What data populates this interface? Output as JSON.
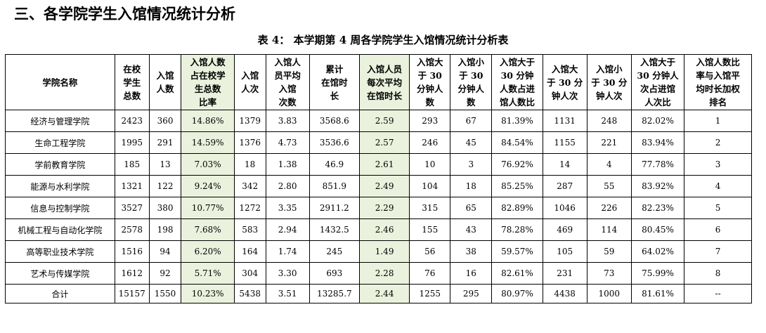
{
  "section_title": "三、各学院学生入馆情况统计分析",
  "table_title": "表 4： 本学期第 4 周各学院学生入馆情况统计分析表",
  "colors": {
    "highlight": "#eaf1dd",
    "border": "#000000"
  },
  "table": {
    "headers": [
      "学院名称",
      "在校\n学生\n总数",
      "入馆\n人数",
      "入馆人数\n占在校学\n生总数\n比率",
      "入馆\n人次",
      "入馆人\n员平均\n入馆\n次数",
      "累计\n在馆时\n长",
      "入馆人员\n每次平均\n在馆时长",
      "入馆大\n于 30\n分钟人\n数",
      "入馆小\n于 30\n分钟人\n数",
      "入馆大于\n30 分钟\n人数占进\n馆人数比",
      "入馆大\n于 30 分\n钟人次",
      "入馆小\n于 30 分\n钟人次",
      "入馆大于\n30 分钟人\n次占进馆\n人次比",
      "入馆人数比\n率与入馆平\n均时长加权\n排名"
    ],
    "rows": [
      [
        "经济与管理学院",
        "2423",
        "360",
        "14.86%",
        "1379",
        "3.83",
        "3568.6",
        "2.59",
        "293",
        "67",
        "81.39%",
        "1131",
        "248",
        "82.02%",
        "1"
      ],
      [
        "生命工程学院",
        "1995",
        "291",
        "14.59%",
        "1376",
        "4.73",
        "3536.6",
        "2.57",
        "246",
        "45",
        "84.54%",
        "1155",
        "221",
        "83.94%",
        "2"
      ],
      [
        "学前教育学院",
        "185",
        "13",
        "7.03%",
        "18",
        "1.38",
        "46.9",
        "2.61",
        "10",
        "3",
        "76.92%",
        "14",
        "4",
        "77.78%",
        "3"
      ],
      [
        "能源与水利学院",
        "1321",
        "122",
        "9.24%",
        "342",
        "2.80",
        "851.9",
        "2.49",
        "104",
        "18",
        "85.25%",
        "287",
        "55",
        "83.92%",
        "4"
      ],
      [
        "信息与控制学院",
        "3527",
        "380",
        "10.77%",
        "1272",
        "3.35",
        "2911.2",
        "2.29",
        "315",
        "65",
        "82.89%",
        "1046",
        "226",
        "82.23%",
        "5"
      ],
      [
        "机械工程与自动化学院",
        "2578",
        "198",
        "7.68%",
        "583",
        "2.94",
        "1432.5",
        "2.46",
        "155",
        "43",
        "78.28%",
        "469",
        "114",
        "80.45%",
        "6"
      ],
      [
        "高等职业技术学院",
        "1516",
        "94",
        "6.20%",
        "164",
        "1.74",
        "245",
        "1.49",
        "56",
        "38",
        "59.57%",
        "105",
        "59",
        "64.02%",
        "7"
      ],
      [
        "艺术与传媒学院",
        "1612",
        "92",
        "5.71%",
        "304",
        "3.30",
        "693",
        "2.28",
        "76",
        "16",
        "82.61%",
        "231",
        "73",
        "75.99%",
        "8"
      ]
    ],
    "total": [
      "合计",
      "15157",
      "1550",
      "10.23%",
      "5438",
      "3.51",
      "13285.7",
      "2.44",
      "1255",
      "295",
      "80.97%",
      "4438",
      "1000",
      "81.61%",
      "--"
    ]
  }
}
